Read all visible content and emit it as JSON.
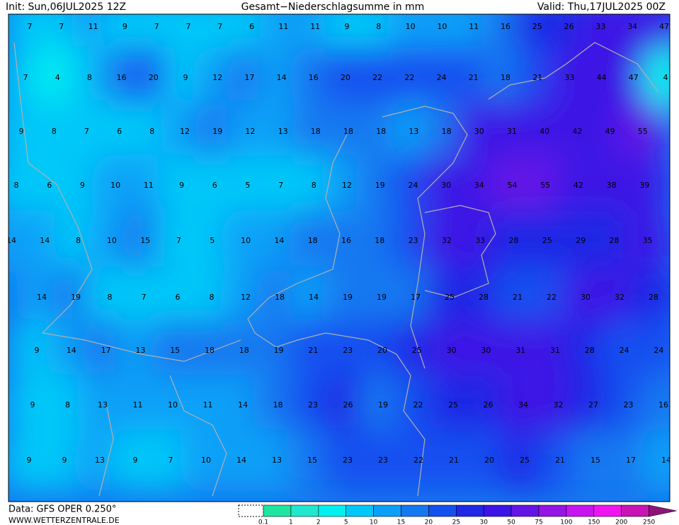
{
  "header": {
    "init": "Init: Sun,06JUL2025 12Z",
    "title": "Gesamt−Niederschlagsumme in mm",
    "valid": "Valid: Thu,17JUL2025 00Z"
  },
  "footer": {
    "data": "Data: GFS OPER 0.250°",
    "site": "WWW.WETTERZENTRALE.DE"
  },
  "legend": {
    "ticks": [
      0.1,
      1,
      2,
      5,
      10,
      15,
      20,
      25,
      30,
      50,
      75,
      100,
      150,
      200,
      250
    ],
    "colors": [
      "#1ee6a0",
      "#20e8d0",
      "#00f0f0",
      "#00c8f8",
      "#0aa0f8",
      "#1478f0",
      "#1450f0",
      "#1e28e6",
      "#3c14e6",
      "#6414e6",
      "#9614e6",
      "#c814f0",
      "#f014f0",
      "#c814b4",
      "#8c1478"
    ]
  },
  "map": {
    "rows": [
      [
        7,
        7,
        11,
        9,
        7,
        7,
        7,
        6,
        11,
        11,
        9,
        8,
        10,
        10,
        11,
        16,
        25,
        26,
        33,
        34,
        47
      ],
      [
        7,
        4,
        8,
        16,
        20,
        9,
        12,
        17,
        14,
        16,
        20,
        22,
        22,
        24,
        21,
        18,
        21,
        33,
        44,
        47,
        4
      ],
      [
        9,
        8,
        7,
        6,
        8,
        12,
        19,
        12,
        13,
        18,
        18,
        18,
        13,
        18,
        30,
        31,
        40,
        42,
        49,
        55
      ],
      [
        8,
        6,
        9,
        10,
        11,
        9,
        6,
        5,
        7,
        8,
        12,
        19,
        24,
        30,
        34,
        54,
        55,
        42,
        38,
        39
      ],
      [
        14,
        14,
        8,
        10,
        15,
        7,
        5,
        10,
        14,
        18,
        16,
        18,
        23,
        32,
        33,
        28,
        25,
        29,
        28,
        35
      ],
      [
        14,
        19,
        8,
        7,
        6,
        8,
        12,
        18,
        14,
        19,
        19,
        17,
        25,
        28,
        21,
        22,
        30,
        32,
        28
      ],
      [
        9,
        14,
        17,
        13,
        15,
        18,
        18,
        19,
        21,
        23,
        20,
        25,
        30,
        30,
        31,
        31,
        28,
        24,
        24
      ],
      [
        9,
        8,
        13,
        11,
        10,
        11,
        14,
        18,
        23,
        26,
        19,
        22,
        25,
        26,
        34,
        32,
        27,
        23,
        16
      ],
      [
        9,
        9,
        13,
        9,
        7,
        10,
        14,
        13,
        15,
        23,
        23,
        22,
        21,
        20,
        25,
        21,
        15,
        17,
        14
      ]
    ]
  }
}
